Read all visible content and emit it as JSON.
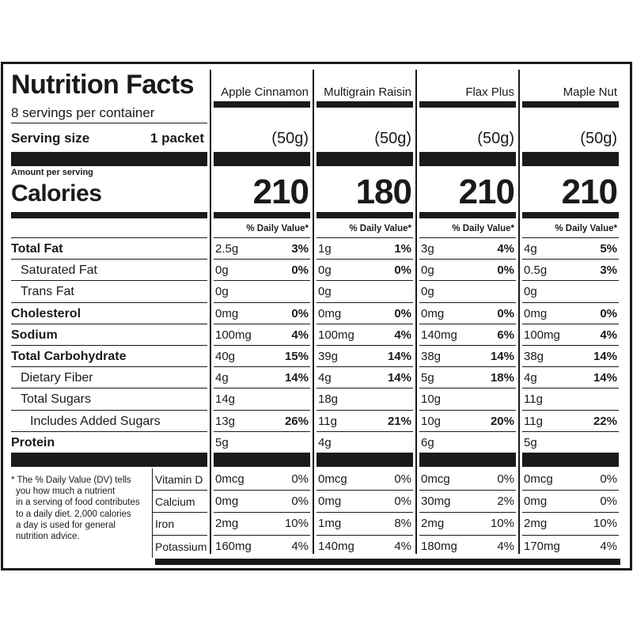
{
  "header": {
    "title": "Nutrition Facts",
    "servings": "8 servings per container",
    "serving_size_label": "Serving size",
    "serving_size": "1 packet",
    "amount_per_serving": "Amount per serving",
    "calories_label": "Calories",
    "dv_heading": "% Daily Value*"
  },
  "nutrients": [
    {
      "label": "Total Fat",
      "level": 0
    },
    {
      "label": "Saturated Fat",
      "level": 1
    },
    {
      "label": "Trans Fat",
      "level": 1
    },
    {
      "label": "Cholesterol",
      "level": 0
    },
    {
      "label": "Sodium",
      "level": 0
    },
    {
      "label": "Total Carbohydrate",
      "level": 0
    },
    {
      "label": "Dietary Fiber",
      "level": 1
    },
    {
      "label": "Total Sugars",
      "level": 1
    },
    {
      "label": "Includes Added Sugars",
      "level": 2
    },
    {
      "label": "Protein",
      "level": 0
    }
  ],
  "vitamins": [
    "Vitamin D",
    "Calcium",
    "Iron",
    "Potassium"
  ],
  "footnote": [
    "* The % Daily Value (DV) tells",
    "you how much a nutrient",
    "in a serving of food contributes",
    "to a daily diet. 2,000 calories",
    "a day is used for general",
    "nutrition advice."
  ],
  "products": [
    {
      "name": "Apple Cinnamon",
      "serving": "(50g)",
      "calories": "210",
      "nutrients": [
        {
          "amount": "2.5g",
          "dv": "3%"
        },
        {
          "amount": "0g",
          "dv": "0%"
        },
        {
          "amount": "0g"
        },
        {
          "amount": "0mg",
          "dv": "0%"
        },
        {
          "amount": "100mg",
          "dv": "4%"
        },
        {
          "amount": "40g",
          "dv": "15%"
        },
        {
          "amount": "4g",
          "dv": "14%"
        },
        {
          "amount": "14g"
        },
        {
          "amount": "13g",
          "dv": "26%"
        },
        {
          "amount": "5g"
        }
      ],
      "vitamins": [
        {
          "amount": "0mcg",
          "dv": "0%"
        },
        {
          "amount": "0mg",
          "dv": "0%"
        },
        {
          "amount": "2mg",
          "dv": "10%"
        },
        {
          "amount": "160mg",
          "dv": "4%"
        }
      ]
    },
    {
      "name": "Multigrain Raisin",
      "serving": "(50g)",
      "calories": "180",
      "nutrients": [
        {
          "amount": "1g",
          "dv": "1%"
        },
        {
          "amount": "0g",
          "dv": "0%"
        },
        {
          "amount": "0g"
        },
        {
          "amount": "0mg",
          "dv": "0%"
        },
        {
          "amount": "100mg",
          "dv": "4%"
        },
        {
          "amount": "39g",
          "dv": "14%"
        },
        {
          "amount": "4g",
          "dv": "14%"
        },
        {
          "amount": "18g"
        },
        {
          "amount": "11g",
          "dv": "21%"
        },
        {
          "amount": "4g"
        }
      ],
      "vitamins": [
        {
          "amount": "0mcg",
          "dv": "0%"
        },
        {
          "amount": "0mg",
          "dv": "0%"
        },
        {
          "amount": "1mg",
          "dv": "8%"
        },
        {
          "amount": "140mg",
          "dv": "4%"
        }
      ]
    },
    {
      "name": "Flax Plus",
      "serving": "(50g)",
      "calories": "210",
      "nutrients": [
        {
          "amount": "3g",
          "dv": "4%"
        },
        {
          "amount": "0g",
          "dv": "0%"
        },
        {
          "amount": "0g"
        },
        {
          "amount": "0mg",
          "dv": "0%"
        },
        {
          "amount": "140mg",
          "dv": "6%"
        },
        {
          "amount": "38g",
          "dv": "14%"
        },
        {
          "amount": "5g",
          "dv": "18%"
        },
        {
          "amount": "10g"
        },
        {
          "amount": "10g",
          "dv": "20%"
        },
        {
          "amount": "6g"
        }
      ],
      "vitamins": [
        {
          "amount": "0mcg",
          "dv": "0%"
        },
        {
          "amount": "30mg",
          "dv": "2%"
        },
        {
          "amount": "2mg",
          "dv": "10%"
        },
        {
          "amount": "180mg",
          "dv": "4%"
        }
      ]
    },
    {
      "name": "Maple Nut",
      "serving": "(50g)",
      "calories": "210",
      "nutrients": [
        {
          "amount": "4g",
          "dv": "5%"
        },
        {
          "amount": "0.5g",
          "dv": "3%"
        },
        {
          "amount": "0g"
        },
        {
          "amount": "0mg",
          "dv": "0%"
        },
        {
          "amount": "100mg",
          "dv": "4%"
        },
        {
          "amount": "38g",
          "dv": "14%"
        },
        {
          "amount": "4g",
          "dv": "14%"
        },
        {
          "amount": "11g"
        },
        {
          "amount": "11g",
          "dv": "22%"
        },
        {
          "amount": "5g"
        }
      ],
      "vitamins": [
        {
          "amount": "0mcg",
          "dv": "0%"
        },
        {
          "amount": "0mg",
          "dv": "0%"
        },
        {
          "amount": "2mg",
          "dv": "10%"
        },
        {
          "amount": "170mg",
          "dv": "4%"
        }
      ]
    }
  ]
}
